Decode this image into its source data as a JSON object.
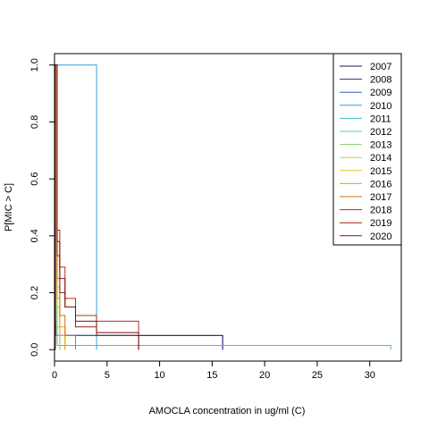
{
  "chart_data": {
    "type": "line",
    "xlabel": "AMOCLA concentration in ug/ml (C)",
    "ylabel": "P[MIC > C]",
    "xlim": [
      0,
      33
    ],
    "ylim": [
      -0.04,
      1.04
    ],
    "xticks": [
      0,
      5,
      10,
      15,
      20,
      25,
      30
    ],
    "yticks": [
      0.0,
      0.2,
      0.4,
      0.6,
      0.8,
      1.0
    ],
    "legend_position": "top-right",
    "series": [
      {
        "name": "2007",
        "color": "#1a1a4a",
        "steps": [
          [
            0.06,
            1.0
          ],
          [
            0.12,
            0.05
          ],
          [
            16,
            0.05
          ],
          [
            16,
            0.0
          ]
        ]
      },
      {
        "name": "2008",
        "color": "#2a2a8a",
        "steps": [
          [
            0.06,
            1.0
          ],
          [
            0.25,
            0.05
          ],
          [
            16,
            0.05
          ],
          [
            16,
            0.0
          ]
        ]
      },
      {
        "name": "2009",
        "color": "#3060c0",
        "steps": [
          [
            0.06,
            1.0
          ],
          [
            0.12,
            0.05
          ],
          [
            8,
            0.05
          ],
          [
            8,
            0.0
          ]
        ]
      },
      {
        "name": "2010",
        "color": "#30a0d8",
        "steps": [
          [
            0.06,
            1.0
          ],
          [
            4,
            1.0
          ],
          [
            4,
            0.0
          ]
        ]
      },
      {
        "name": "2011",
        "color": "#40c0d0",
        "steps": [
          [
            0.06,
            1.0
          ],
          [
            0.25,
            0.015
          ],
          [
            32,
            0.015
          ],
          [
            32,
            0.0
          ]
        ]
      },
      {
        "name": "2012",
        "color": "#50d0a0",
        "steps": [
          [
            0.06,
            1.0
          ],
          [
            0.12,
            0.1
          ],
          [
            0.25,
            0.05
          ],
          [
            0.5,
            0.0
          ]
        ]
      },
      {
        "name": "2013",
        "color": "#80d060",
        "steps": [
          [
            0.06,
            1.0
          ],
          [
            0.12,
            0.2
          ],
          [
            0.25,
            0.08
          ],
          [
            0.5,
            0.0
          ]
        ]
      },
      {
        "name": "2014",
        "color": "#c0d040",
        "steps": [
          [
            0.06,
            1.0
          ],
          [
            0.12,
            0.3
          ],
          [
            0.25,
            0.15
          ],
          [
            0.5,
            0.0
          ]
        ]
      },
      {
        "name": "2015",
        "color": "#e8c020",
        "steps": [
          [
            0.06,
            1.0
          ],
          [
            0.12,
            0.35
          ],
          [
            0.25,
            0.22
          ],
          [
            0.5,
            0.05
          ],
          [
            1,
            0.0
          ]
        ]
      },
      {
        "name": "2016",
        "color": "#e0a010",
        "steps": [
          [
            0.06,
            1.0
          ],
          [
            0.12,
            0.3
          ],
          [
            0.25,
            0.18
          ],
          [
            0.5,
            0.08
          ],
          [
            1,
            0.0
          ]
        ]
      },
      {
        "name": "2017",
        "color": "#d07010",
        "steps": [
          [
            0.06,
            1.0
          ],
          [
            0.25,
            0.25
          ],
          [
            0.5,
            0.12
          ],
          [
            1,
            0.05
          ],
          [
            2,
            0.0
          ]
        ]
      },
      {
        "name": "2018",
        "color": "#b03010",
        "steps": [
          [
            0.06,
            1.0
          ],
          [
            0.25,
            0.42
          ],
          [
            0.5,
            0.29
          ],
          [
            1,
            0.18
          ],
          [
            2,
            0.12
          ],
          [
            4,
            0.1
          ],
          [
            8,
            0.08
          ],
          [
            8,
            0.0
          ]
        ]
      },
      {
        "name": "2019",
        "color": "#9a2010",
        "steps": [
          [
            0.06,
            1.0
          ],
          [
            0.25,
            0.33
          ],
          [
            0.5,
            0.2
          ],
          [
            1,
            0.15
          ],
          [
            2,
            0.08
          ],
          [
            4,
            0.05
          ],
          [
            8,
            0.04
          ],
          [
            8,
            0.0
          ]
        ]
      },
      {
        "name": "2020",
        "color": "#801010",
        "steps": [
          [
            0.06,
            1.0
          ],
          [
            0.25,
            0.38
          ],
          [
            0.5,
            0.25
          ],
          [
            1,
            0.15
          ],
          [
            2,
            0.1
          ],
          [
            4,
            0.06
          ],
          [
            8,
            0.03
          ],
          [
            8,
            0.0
          ]
        ]
      }
    ]
  }
}
